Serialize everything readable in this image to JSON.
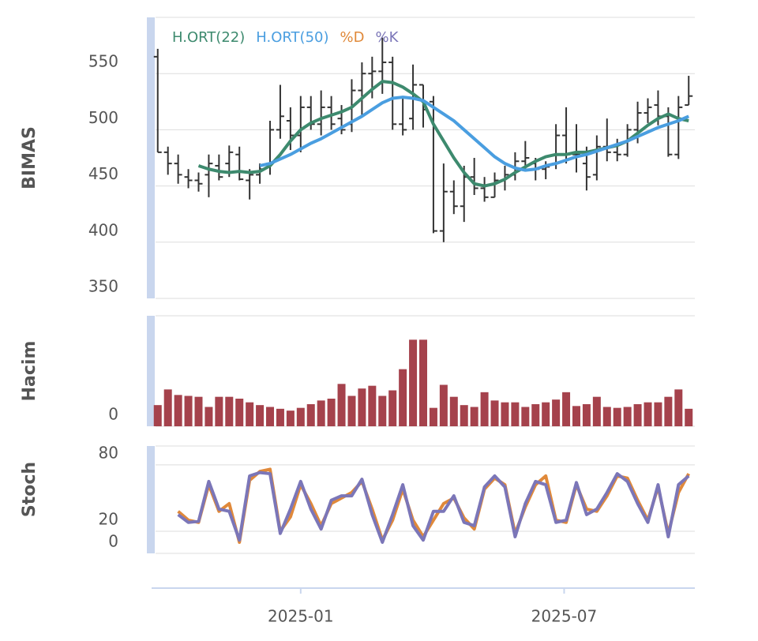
{
  "chart_data": [
    {
      "type": "ohlc",
      "ylabel": "BIMAS",
      "ylim": [
        350,
        600
      ],
      "yticks": [
        350,
        400,
        450,
        500,
        550
      ],
      "grid": true,
      "ohlc": {
        "color": "#333333",
        "open": [
          565,
          480,
          470,
          458,
          455,
          460,
          468,
          470,
          478,
          455,
          460,
          470,
          500,
          508,
          495,
          520,
          505,
          520,
          510,
          505,
          535,
          550,
          552,
          560,
          505,
          510,
          540,
          525,
          410,
          445,
          432,
          458,
          448,
          440,
          455,
          460,
          472,
          470,
          465,
          470,
          495,
          478,
          470,
          460,
          485,
          480,
          478,
          500,
          515,
          522,
          512,
          478,
          522
        ],
        "high": [
          572,
          485,
          478,
          465,
          462,
          478,
          478,
          486,
          485,
          465,
          470,
          508,
          540,
          520,
          530,
          530,
          535,
          530,
          522,
          545,
          560,
          565,
          582,
          565,
          528,
          558,
          540,
          530,
          470,
          455,
          468,
          475,
          458,
          462,
          468,
          480,
          490,
          475,
          472,
          505,
          520,
          505,
          485,
          495,
          510,
          492,
          505,
          525,
          528,
          535,
          520,
          530,
          548
        ],
        "low": [
          480,
          460,
          452,
          448,
          445,
          440,
          455,
          458,
          455,
          438,
          452,
          460,
          492,
          482,
          480,
          500,
          495,
          500,
          496,
          498,
          512,
          528,
          532,
          500,
          495,
          500,
          502,
          408,
          400,
          425,
          418,
          442,
          436,
          440,
          446,
          455,
          465,
          455,
          456,
          465,
          470,
          462,
          446,
          455,
          472,
          472,
          476,
          488,
          506,
          504,
          476,
          474,
          522
        ],
        "close": [
          480,
          470,
          460,
          455,
          452,
          470,
          458,
          480,
          456,
          460,
          465,
          500,
          512,
          495,
          520,
          505,
          520,
          505,
          500,
          535,
          550,
          552,
          560,
          505,
          500,
          540,
          518,
          410,
          445,
          432,
          458,
          448,
          440,
          455,
          460,
          472,
          475,
          465,
          467,
          495,
          478,
          478,
          458,
          485,
          480,
          478,
          500,
          515,
          520,
          512,
          478,
          520,
          530
        ]
      },
      "series": [
        {
          "name": "H.ORT(22)",
          "color": "#3d8a6e",
          "values": [
            null,
            null,
            null,
            null,
            468,
            465,
            463,
            462,
            463,
            462,
            463,
            468,
            478,
            490,
            500,
            506,
            510,
            513,
            516,
            520,
            528,
            536,
            543,
            542,
            538,
            532,
            525,
            505,
            490,
            475,
            462,
            452,
            450,
            452,
            456,
            462,
            467,
            472,
            476,
            478,
            478,
            480,
            480,
            482,
            484,
            486,
            490,
            497,
            504,
            510,
            514,
            510,
            508
          ]
        },
        {
          "name": "H.ORT(50)",
          "color": "#4a9ee0",
          "values": [
            null,
            null,
            null,
            null,
            null,
            null,
            null,
            null,
            null,
            null,
            468,
            470,
            474,
            478,
            483,
            488,
            492,
            497,
            502,
            507,
            512,
            518,
            524,
            528,
            529,
            528,
            526,
            520,
            514,
            508,
            500,
            492,
            484,
            476,
            470,
            466,
            464,
            465,
            468,
            470,
            473,
            476,
            478,
            481,
            484,
            487,
            490,
            494,
            498,
            502,
            505,
            508,
            512
          ]
        }
      ]
    },
    {
      "type": "bar",
      "ylabel": "Hacim",
      "ylim": [
        0,
        12
      ],
      "yticks": [
        0
      ],
      "color": "#a5424c",
      "values": [
        2.3,
        4.0,
        3.4,
        3.3,
        3.2,
        2.1,
        3.2,
        3.2,
        3.0,
        2.6,
        2.3,
        2.1,
        1.9,
        1.7,
        2.0,
        2.4,
        2.8,
        3.0,
        4.6,
        3.3,
        4.1,
        4.4,
        3.3,
        3.9,
        6.2,
        9.4,
        9.4,
        2.0,
        4.5,
        3.2,
        2.3,
        2.1,
        3.7,
        2.8,
        2.6,
        2.6,
        2.1,
        2.4,
        2.6,
        2.9,
        3.7,
        2.2,
        2.4,
        3.2,
        2.1,
        2.0,
        2.1,
        2.4,
        2.6,
        2.6,
        3.2,
        4.0,
        1.9
      ]
    },
    {
      "type": "line",
      "ylabel": "Stoch",
      "ylim": [
        0,
        97
      ],
      "yticks": [
        0,
        20,
        80
      ],
      "grid": true,
      "xlim": [
        -0.6,
        52.6
      ],
      "xticks": [
        {
          "value": 14.0,
          "label": "2025-01"
        },
        {
          "value": 39.8,
          "label": "2025-07"
        }
      ],
      "series": [
        {
          "name": "%D",
          "color": "#e0893a",
          "values": [
            null,
            null,
            38,
            30,
            28,
            62,
            38,
            45,
            10,
            66,
            74,
            76,
            20,
            33,
            62,
            45,
            25,
            45,
            50,
            55,
            65,
            40,
            12,
            30,
            58,
            30,
            15,
            30,
            45,
            50,
            32,
            22,
            58,
            68,
            62,
            18,
            42,
            62,
            70,
            30,
            28,
            62,
            40,
            38,
            52,
            70,
            68,
            48,
            30,
            60,
            18,
            55,
            72
          ]
        },
        {
          "name": "%K",
          "color": "#7b76b8",
          "values": [
            null,
            null,
            35,
            28,
            29,
            65,
            40,
            38,
            12,
            70,
            73,
            72,
            18,
            40,
            65,
            40,
            22,
            48,
            52,
            52,
            67,
            35,
            10,
            35,
            62,
            25,
            12,
            38,
            38,
            52,
            28,
            25,
            60,
            70,
            60,
            15,
            45,
            65,
            62,
            28,
            30,
            64,
            35,
            40,
            55,
            72,
            65,
            45,
            28,
            62,
            15,
            62,
            70
          ]
        }
      ]
    }
  ]
}
